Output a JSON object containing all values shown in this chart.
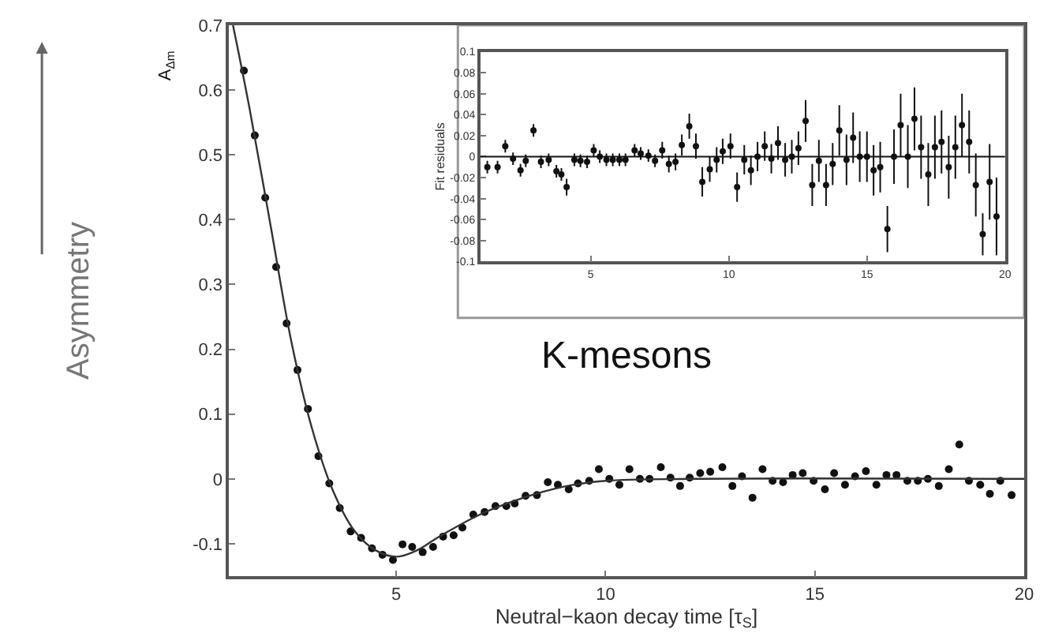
{
  "chart_data": [
    {
      "type": "scatter",
      "ylabel": "Asymmetry",
      "xlabel": "Neutral−kaon decay time [τ$_{S}$]",
      "annotations": [
        "A$_{Δm}$",
        "K-mesons"
      ],
      "xlim": [
        1,
        20
      ],
      "ylim": [
        -0.15,
        0.7
      ],
      "xticks": [
        5,
        10,
        15,
        20
      ],
      "yticks": [
        -0.1,
        0,
        0.1,
        0.2,
        0.3,
        0.4,
        0.5,
        0.6,
        0.7
      ],
      "grid": false,
      "series": [
        {
          "marker": "circle",
          "color": "#111111",
          "x": [
            1.36,
            1.62,
            1.87,
            2.13,
            2.38,
            2.64,
            2.89,
            3.14,
            3.4,
            3.65,
            3.91,
            4.16,
            4.42,
            4.67,
            4.92,
            5.15,
            5.38,
            5.63,
            5.88,
            6.12,
            6.37,
            6.58,
            6.84,
            7.11,
            7.37,
            7.63,
            7.83,
            8.09,
            8.36,
            8.62,
            8.86,
            9.12,
            9.34,
            9.61,
            9.84,
            10.09,
            10.33,
            10.57,
            10.82,
            11.05,
            11.32,
            11.55,
            11.78,
            12.01,
            12.26,
            12.5,
            12.79,
            13.03,
            13.26,
            13.51,
            13.75,
            13.99,
            14.24,
            14.47,
            14.71,
            14.97,
            15.24,
            15.46,
            15.72,
            15.96,
            16.22,
            16.47,
            16.71,
            16.95,
            17.21,
            17.46,
            17.7,
            17.96,
            18.2,
            18.45,
            18.68,
            18.95,
            19.18,
            19.43,
            19.7
          ],
          "values": [
            0.63,
            0.53,
            0.434,
            0.327,
            0.24,
            0.168,
            0.108,
            0.035,
            -0.007,
            -0.045,
            -0.081,
            -0.091,
            -0.107,
            -0.117,
            -0.125,
            -0.101,
            -0.105,
            -0.113,
            -0.105,
            -0.089,
            -0.087,
            -0.075,
            -0.055,
            -0.051,
            -0.042,
            -0.042,
            -0.038,
            -0.026,
            -0.025,
            -0.005,
            -0.009,
            -0.016,
            -0.007,
            -0.003,
            0.015,
            0,
            -0.009,
            0.015,
            0,
            0,
            0.018,
            0.002,
            -0.011,
            0.002,
            0.009,
            0.011,
            0.018,
            -0.011,
            0.004,
            -0.029,
            0.015,
            -0.003,
            -0.005,
            0.006,
            0.009,
            -0.003,
            -0.016,
            0.009,
            -0.009,
            0.004,
            0.012,
            -0.009,
            0.006,
            0.006,
            -0.003,
            -0.003,
            0,
            -0.011,
            0.015,
            0.053,
            -0.003,
            -0.009,
            -0.023,
            -0.003,
            -0.025
          ]
        },
        {
          "type": "line",
          "marker": "none",
          "line_style": "solid",
          "color": "#333333",
          "x": [
            1.1,
            1.5,
            2,
            2.5,
            3,
            3.5,
            4,
            4.5,
            5,
            5.5,
            6,
            7,
            8,
            9,
            10,
            12,
            20
          ],
          "values": [
            0.7,
            0.57,
            0.39,
            0.21,
            0.075,
            -0.02,
            -0.08,
            -0.11,
            -0.12,
            -0.11,
            -0.09,
            -0.055,
            -0.03,
            -0.012,
            -0.003,
            0,
            0
          ]
        }
      ]
    },
    {
      "type": "scatter",
      "ylabel": "Fit residuals",
      "xlim": [
        1,
        20
      ],
      "ylim": [
        -0.1,
        0.1
      ],
      "xticks": [
        5,
        10,
        15,
        20
      ],
      "yticks": [
        -0.1,
        -0.08,
        -0.06,
        -0.04,
        -0.02,
        0,
        0.02,
        0.04,
        0.06,
        0.08,
        0.1
      ],
      "grid": false,
      "ref_lines": [
        {
          "axis": "y",
          "value": 0,
          "color": "#111111",
          "line_style": "solid"
        }
      ],
      "series": [
        {
          "marker": "circle",
          "color": "#111111",
          "x": [
            1.26,
            1.63,
            1.91,
            2.19,
            2.46,
            2.65,
            2.93,
            3.2,
            3.48,
            3.76,
            3.94,
            4.13,
            4.41,
            4.63,
            4.87,
            5.11,
            5.33,
            5.57,
            5.8,
            6.04,
            6.26,
            6.59,
            6.81,
            7.09,
            7.33,
            7.59,
            7.83,
            8.07,
            8.3,
            8.57,
            8.81,
            9.04,
            9.31,
            9.56,
            9.78,
            10.06,
            10.3,
            10.56,
            10.8,
            11.04,
            11.3,
            11.54,
            11.78,
            12.04,
            12.28,
            12.52,
            12.78,
            13.02,
            13.26,
            13.52,
            13.76,
            14.0,
            14.26,
            14.5,
            14.74,
            15.0,
            15.24,
            15.48,
            15.74,
            15.98,
            16.22,
            16.48,
            16.72,
            16.96,
            17.22,
            17.46,
            17.7,
            17.96,
            18.2,
            18.44,
            18.7,
            18.94,
            19.19,
            19.44,
            19.69
          ],
          "values": [
            -0.01,
            -0.01,
            0.01,
            -0.002,
            -0.013,
            -0.004,
            0.025,
            -0.005,
            -0.003,
            -0.014,
            -0.017,
            -0.029,
            -0.003,
            -0.004,
            -0.005,
            0.006,
            0,
            -0.003,
            -0.003,
            -0.003,
            -0.003,
            0.006,
            0.003,
            0.001,
            -0.004,
            0.006,
            -0.007,
            -0.005,
            0.011,
            0.029,
            0.01,
            -0.024,
            -0.012,
            -0.003,
            0.005,
            0.01,
            -0.029,
            -0.003,
            -0.013,
            0,
            0.01,
            -0.002,
            0.013,
            -0.003,
            0,
            0.008,
            0.034,
            -0.027,
            -0.004,
            -0.027,
            -0.007,
            0.025,
            -0.003,
            0.018,
            0,
            0,
            -0.013,
            -0.01,
            -0.069,
            0,
            0.03,
            0,
            0.036,
            0.009,
            -0.017,
            0.009,
            0.014,
            -0.01,
            0.009,
            0.03,
            0.014,
            -0.027,
            -0.074,
            -0.024,
            -0.057
          ],
          "errors": [
            0.006,
            0.006,
            0.006,
            0.006,
            0.006,
            0.006,
            0.006,
            0.006,
            0.006,
            0.006,
            0.006,
            0.008,
            0.006,
            0.006,
            0.006,
            0.006,
            0.006,
            0.006,
            0.006,
            0.006,
            0.006,
            0.006,
            0.006,
            0.006,
            0.006,
            0.008,
            0.008,
            0.008,
            0.01,
            0.012,
            0.012,
            0.014,
            0.012,
            0.012,
            0.012,
            0.012,
            0.014,
            0.014,
            0.014,
            0.014,
            0.014,
            0.014,
            0.016,
            0.016,
            0.016,
            0.016,
            0.02,
            0.02,
            0.02,
            0.02,
            0.02,
            0.024,
            0.024,
            0.024,
            0.024,
            0.024,
            0.024,
            0.024,
            0.022,
            0.026,
            0.03,
            0.03,
            0.03,
            0.03,
            0.03,
            0.03,
            0.03,
            0.03,
            0.03,
            0.03,
            0.03,
            0.03,
            0.02,
            0.036,
            0.037
          ]
        }
      ]
    }
  ]
}
